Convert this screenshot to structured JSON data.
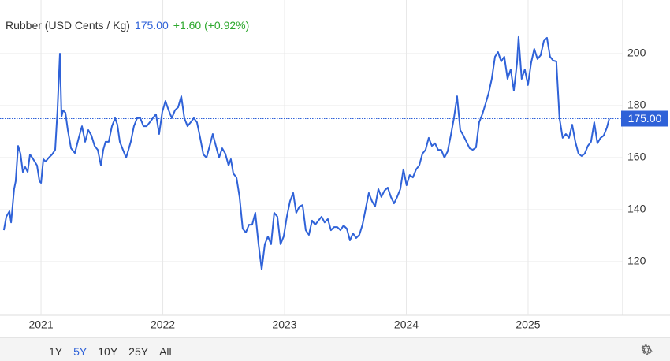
{
  "chart_data": {
    "type": "line",
    "title": "Rubber (USD Cents / Kg)",
    "last_price": {
      "value": 175,
      "label": "175.00"
    },
    "change": "+1.60 (+0.92%)",
    "color": "#2f62d8",
    "grid": true,
    "xlim": [
      2020.663,
      2025.777
    ],
    "xticks": [
      2021,
      2022,
      2023,
      2024,
      2025
    ],
    "ylim": [
      99.4,
      220.6
    ],
    "yticks": [
      120,
      140,
      160,
      180,
      200
    ],
    "x": [
      2020.695,
      2020.715,
      2020.741,
      2020.754,
      2020.779,
      2020.792,
      2020.812,
      2020.831,
      2020.851,
      2020.87,
      2020.89,
      2020.909,
      2020.928,
      2020.948,
      2020.967,
      2020.987,
      2021.0,
      2021.019,
      2021.038,
      2021.064,
      2021.09,
      2021.116,
      2021.135,
      2021.155,
      2021.168,
      2021.181,
      2021.2,
      2021.22,
      2021.246,
      2021.278,
      2021.31,
      2021.336,
      2021.362,
      2021.388,
      2021.414,
      2021.44,
      2021.466,
      2021.492,
      2021.511,
      2021.53,
      2021.556,
      2021.582,
      2021.608,
      2021.627,
      2021.647,
      2021.673,
      2021.699,
      2021.718,
      2021.737,
      2021.763,
      2021.789,
      2021.815,
      2021.841,
      2021.867,
      2021.893,
      2021.919,
      2021.944,
      2021.97,
      2021.996,
      2022.022,
      2022.048,
      2022.074,
      2022.1,
      2022.126,
      2022.152,
      2022.177,
      2022.203,
      2022.229,
      2022.255,
      2022.281,
      2022.307,
      2022.333,
      2022.359,
      2022.385,
      2022.41,
      2022.436,
      2022.462,
      2022.488,
      2022.514,
      2022.54,
      2022.559,
      2022.579,
      2022.605,
      2022.63,
      2022.656,
      2022.682,
      2022.708,
      2022.734,
      2022.76,
      2022.786,
      2022.812,
      2022.838,
      2022.863,
      2022.889,
      2022.915,
      2022.941,
      2022.967,
      2022.993,
      2023.019,
      2023.045,
      2023.071,
      2023.096,
      2023.122,
      2023.148,
      2023.174,
      2023.2,
      2023.226,
      2023.252,
      2023.278,
      2023.304,
      2023.329,
      2023.355,
      2023.381,
      2023.407,
      2023.433,
      2023.459,
      2023.485,
      2023.511,
      2023.537,
      2023.562,
      2023.588,
      2023.614,
      2023.64,
      2023.666,
      2023.692,
      2023.718,
      2023.744,
      2023.77,
      2023.795,
      2023.821,
      2023.847,
      2023.873,
      2023.899,
      2023.925,
      2023.951,
      2023.976,
      2024.002,
      2024.028,
      2024.054,
      2024.08,
      2024.106,
      2024.132,
      2024.158,
      2024.184,
      2024.21,
      2024.236,
      2024.261,
      2024.287,
      2024.313,
      2024.339,
      2024.365,
      2024.391,
      2024.417,
      2024.443,
      2024.469,
      2024.494,
      2024.52,
      2024.546,
      2024.572,
      2024.598,
      2024.624,
      2024.65,
      2024.676,
      2024.702,
      2024.728,
      2024.753,
      2024.779,
      2024.805,
      2024.831,
      2024.857,
      2024.883,
      2024.909,
      2024.922,
      2024.947,
      2024.973,
      2024.999,
      2025.025,
      2025.051,
      2025.077,
      2025.103,
      2025.129,
      2025.155,
      2025.18,
      2025.206,
      2025.232,
      2025.258,
      2025.284,
      2025.31,
      2025.336,
      2025.362,
      2025.388,
      2025.414,
      2025.44,
      2025.465,
      2025.491,
      2025.517,
      2025.543,
      2025.569,
      2025.595,
      2025.621,
      2025.647,
      2025.666
    ],
    "values": [
      132.1,
      137.3,
      139.4,
      135.1,
      147.9,
      150.9,
      164.5,
      161.5,
      154.5,
      156.4,
      154.5,
      161.2,
      160.0,
      158.5,
      157.0,
      150.9,
      150.3,
      159.4,
      158.5,
      160.0,
      161.2,
      163.0,
      178.2,
      200.0,
      175.8,
      178.2,
      177.3,
      170.6,
      163.6,
      161.8,
      167.6,
      172.1,
      166.1,
      170.6,
      168.5,
      164.5,
      163.0,
      157.0,
      163.0,
      166.1,
      166.1,
      172.1,
      175.2,
      172.7,
      166.1,
      163.0,
      160.0,
      163.0,
      166.1,
      172.1,
      175.2,
      175.2,
      172.1,
      172.1,
      173.6,
      175.2,
      176.7,
      169.1,
      177.6,
      181.8,
      178.2,
      175.2,
      178.2,
      179.4,
      183.6,
      175.2,
      172.1,
      173.6,
      175.2,
      173.6,
      167.6,
      161.2,
      160.0,
      164.5,
      169.1,
      164.5,
      160.0,
      163.6,
      161.5,
      157.0,
      159.4,
      153.9,
      152.4,
      144.9,
      132.7,
      131.2,
      134.2,
      134.2,
      138.8,
      126.7,
      117.0,
      126.7,
      129.7,
      126.7,
      138.8,
      137.3,
      126.7,
      129.7,
      137.3,
      143.3,
      146.4,
      138.8,
      141.2,
      141.8,
      132.1,
      130.3,
      135.8,
      134.2,
      135.8,
      137.3,
      135.1,
      136.4,
      132.1,
      133.3,
      133.3,
      132.1,
      133.9,
      132.7,
      128.2,
      130.9,
      129.1,
      130.3,
      134.2,
      140.3,
      146.4,
      143.3,
      141.2,
      147.9,
      144.9,
      147.3,
      148.5,
      144.9,
      142.4,
      144.9,
      147.9,
      155.5,
      149.4,
      153.3,
      152.4,
      155.5,
      157.0,
      161.5,
      163.0,
      167.6,
      164.5,
      165.5,
      163.0,
      163.0,
      160.0,
      162.4,
      168.5,
      175.2,
      183.6,
      170.6,
      168.5,
      166.1,
      163.6,
      163.0,
      163.9,
      173.6,
      176.7,
      180.6,
      184.8,
      190.3,
      198.8,
      200.6,
      197.0,
      198.8,
      190.3,
      193.9,
      185.8,
      196.4,
      206.4,
      190.3,
      193.9,
      187.9,
      196.4,
      201.8,
      197.9,
      199.4,
      204.8,
      206.1,
      198.8,
      197.3,
      197.0,
      175.2,
      167.6,
      169.1,
      167.6,
      172.7,
      166.1,
      161.5,
      160.6,
      161.5,
      164.5,
      166.1,
      173.6,
      165.5,
      167.6,
      168.5,
      171.5,
      175.0
    ],
    "ranges": [
      "1Y",
      "5Y",
      "10Y",
      "25Y",
      "All"
    ],
    "selected_range": "5Y",
    "selected_color": "#2f62d8",
    "change_color": "#2ea82e"
  }
}
